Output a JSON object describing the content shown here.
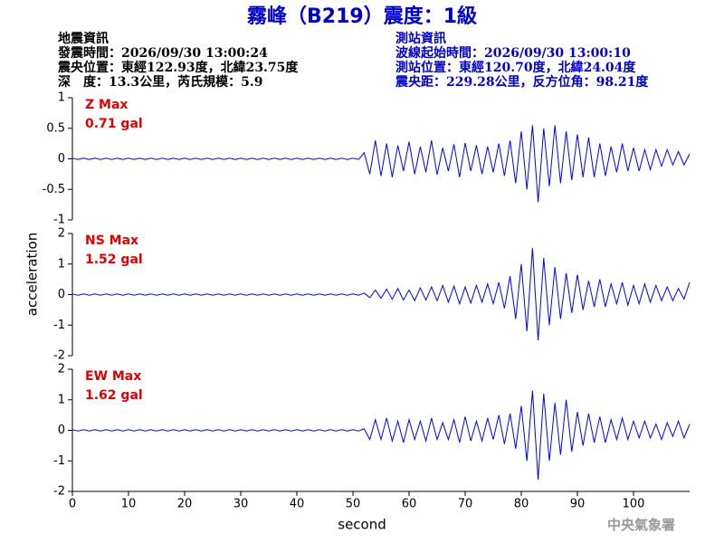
{
  "title": "霧峰（B219）震度：1級",
  "event": {
    "heading": "地震資訊",
    "time": "發震時間：2026/09/30 13:00:24",
    "location": "震央位置：東經122.93度，北緯23.75度",
    "depth": "深　度：13.3公里，芮氏規模：5.9"
  },
  "station": {
    "heading": "測站資訊",
    "time": "波線起始時間：2026/09/30 13:00:10",
    "location": "測站位置：東經120.70度，北緯24.04度",
    "distance": "震央距：229.28公里，反方位角：98.21度"
  },
  "ylabel": "acceleration",
  "xlabel": "second",
  "footer": "中央氣象署",
  "chart_data": [
    {
      "type": "line",
      "annotation": [
        "Z Max",
        "0.71 gal"
      ],
      "color": "#0000ff",
      "xlim": [
        0,
        110
      ],
      "ylim": [
        -1,
        1
      ],
      "yticks": [
        -1,
        -0.5,
        0,
        0.5,
        1
      ],
      "x": [
        0,
        1,
        2,
        3,
        4,
        5,
        6,
        7,
        8,
        9,
        10,
        11,
        12,
        13,
        14,
        15,
        16,
        17,
        18,
        19,
        20,
        21,
        22,
        23,
        24,
        25,
        26,
        27,
        28,
        29,
        30,
        31,
        32,
        33,
        34,
        35,
        36,
        37,
        38,
        39,
        40,
        41,
        42,
        43,
        44,
        45,
        46,
        47,
        48,
        49,
        50,
        51,
        52,
        53,
        54,
        55,
        56,
        57,
        58,
        59,
        60,
        61,
        62,
        63,
        64,
        65,
        66,
        67,
        68,
        69,
        70,
        71,
        72,
        73,
        74,
        75,
        76,
        77,
        78,
        79,
        80,
        81,
        82,
        83,
        84,
        85,
        86,
        87,
        88,
        89,
        90,
        91,
        92,
        93,
        94,
        95,
        96,
        97,
        98,
        99,
        100,
        101,
        102,
        103,
        104,
        105,
        106,
        107,
        108,
        109,
        110
      ],
      "values": [
        0.01,
        -0.01,
        0.01,
        -0.01,
        0.01,
        -0.01,
        0.01,
        -0.01,
        0.01,
        -0.01,
        0.01,
        -0.01,
        0.01,
        -0.01,
        0.01,
        -0.01,
        0.01,
        -0.01,
        0.01,
        -0.01,
        0.01,
        -0.01,
        0.01,
        -0.01,
        0.01,
        -0.01,
        0.01,
        -0.01,
        0.01,
        -0.01,
        0.01,
        -0.01,
        0.01,
        -0.01,
        0.01,
        -0.01,
        0.01,
        -0.01,
        0.01,
        -0.01,
        0.01,
        -0.01,
        0.01,
        -0.01,
        0.01,
        -0.01,
        0.01,
        -0.01,
        0.01,
        -0.01,
        0.01,
        -0.01,
        0.1,
        -0.25,
        0.3,
        -0.28,
        0.25,
        -0.3,
        0.22,
        -0.2,
        0.28,
        -0.25,
        0.2,
        -0.22,
        0.3,
        -0.26,
        0.18,
        -0.2,
        0.24,
        -0.3,
        0.26,
        -0.2,
        0.22,
        -0.25,
        0.2,
        -0.22,
        0.25,
        -0.28,
        0.3,
        -0.4,
        0.45,
        -0.5,
        0.55,
        -0.71,
        0.5,
        -0.45,
        0.55,
        -0.4,
        0.45,
        -0.35,
        0.4,
        -0.3,
        0.35,
        -0.3,
        0.25,
        -0.28,
        0.2,
        -0.22,
        0.25,
        -0.2,
        0.18,
        -0.2,
        0.15,
        -0.18,
        0.15,
        -0.12,
        0.15,
        -0.1,
        0.12,
        -0.1,
        0.08
      ]
    },
    {
      "type": "line",
      "annotation": [
        "NS Max",
        "1.52 gal"
      ],
      "color": "#0000ff",
      "xlim": [
        0,
        110
      ],
      "ylim": [
        -2,
        2
      ],
      "yticks": [
        -2,
        -1,
        0,
        1,
        2
      ],
      "x": [
        0,
        1,
        2,
        3,
        4,
        5,
        6,
        7,
        8,
        9,
        10,
        11,
        12,
        13,
        14,
        15,
        16,
        17,
        18,
        19,
        20,
        21,
        22,
        23,
        24,
        25,
        26,
        27,
        28,
        29,
        30,
        31,
        32,
        33,
        34,
        35,
        36,
        37,
        38,
        39,
        40,
        41,
        42,
        43,
        44,
        45,
        46,
        47,
        48,
        49,
        50,
        51,
        52,
        53,
        54,
        55,
        56,
        57,
        58,
        59,
        60,
        61,
        62,
        63,
        64,
        65,
        66,
        67,
        68,
        69,
        70,
        71,
        72,
        73,
        74,
        75,
        76,
        77,
        78,
        79,
        80,
        81,
        82,
        83,
        84,
        85,
        86,
        87,
        88,
        89,
        90,
        91,
        92,
        93,
        94,
        95,
        96,
        97,
        98,
        99,
        100,
        101,
        102,
        103,
        104,
        105,
        106,
        107,
        108,
        109,
        110
      ],
      "values": [
        0.02,
        -0.02,
        0.02,
        -0.02,
        0.02,
        -0.02,
        0.02,
        -0.02,
        0.02,
        -0.02,
        0.02,
        -0.02,
        0.02,
        -0.02,
        0.02,
        -0.02,
        0.02,
        -0.02,
        0.02,
        -0.02,
        0.02,
        -0.02,
        0.02,
        -0.02,
        0.02,
        -0.02,
        0.02,
        -0.02,
        0.02,
        -0.02,
        0.02,
        -0.02,
        0.02,
        -0.02,
        0.02,
        -0.02,
        0.02,
        -0.02,
        0.02,
        -0.02,
        0.02,
        -0.02,
        0.02,
        -0.02,
        0.02,
        -0.02,
        0.02,
        -0.02,
        0.02,
        -0.02,
        0.02,
        -0.02,
        0.05,
        -0.1,
        0.15,
        -0.12,
        0.18,
        -0.15,
        0.2,
        -0.18,
        0.15,
        -0.2,
        0.22,
        -0.18,
        0.25,
        -0.2,
        0.3,
        -0.25,
        0.28,
        -0.3,
        0.25,
        -0.28,
        0.3,
        -0.25,
        0.35,
        -0.3,
        0.4,
        -0.45,
        0.6,
        -0.8,
        1.0,
        -1.2,
        1.52,
        -1.5,
        1.2,
        -1.0,
        0.9,
        -0.8,
        0.7,
        -0.6,
        0.65,
        -0.5,
        0.45,
        -0.4,
        0.5,
        -0.4,
        0.35,
        -0.3,
        0.4,
        -0.35,
        0.3,
        -0.3,
        0.35,
        -0.25,
        0.3,
        -0.2,
        0.25,
        -0.2,
        0.2,
        -0.15,
        0.4
      ]
    },
    {
      "type": "line",
      "annotation": [
        "EW Max",
        "1.62 gal"
      ],
      "color": "#0000ff",
      "xlim": [
        0,
        110
      ],
      "ylim": [
        -2,
        2
      ],
      "yticks": [
        -2,
        -1,
        0,
        1,
        2
      ],
      "xticks": [
        0,
        10,
        20,
        30,
        40,
        50,
        60,
        70,
        80,
        90,
        100
      ],
      "x": [
        0,
        1,
        2,
        3,
        4,
        5,
        6,
        7,
        8,
        9,
        10,
        11,
        12,
        13,
        14,
        15,
        16,
        17,
        18,
        19,
        20,
        21,
        22,
        23,
        24,
        25,
        26,
        27,
        28,
        29,
        30,
        31,
        32,
        33,
        34,
        35,
        36,
        37,
        38,
        39,
        40,
        41,
        42,
        43,
        44,
        45,
        46,
        47,
        48,
        49,
        50,
        51,
        52,
        53,
        54,
        55,
        56,
        57,
        58,
        59,
        60,
        61,
        62,
        63,
        64,
        65,
        66,
        67,
        68,
        69,
        70,
        71,
        72,
        73,
        74,
        75,
        76,
        77,
        78,
        79,
        80,
        81,
        82,
        83,
        84,
        85,
        86,
        87,
        88,
        89,
        90,
        91,
        92,
        93,
        94,
        95,
        96,
        97,
        98,
        99,
        100,
        101,
        102,
        103,
        104,
        105,
        106,
        107,
        108,
        109,
        110
      ],
      "values": [
        0.02,
        -0.02,
        0.02,
        -0.02,
        0.02,
        -0.02,
        0.02,
        -0.02,
        0.02,
        -0.02,
        0.02,
        -0.02,
        0.02,
        -0.02,
        0.02,
        -0.02,
        0.02,
        -0.02,
        0.02,
        -0.02,
        0.02,
        -0.02,
        0.02,
        -0.02,
        0.02,
        -0.02,
        0.02,
        -0.02,
        0.02,
        -0.02,
        0.02,
        -0.02,
        0.02,
        -0.02,
        0.02,
        -0.02,
        0.02,
        -0.02,
        0.02,
        -0.02,
        0.02,
        -0.02,
        0.02,
        -0.02,
        0.02,
        -0.02,
        0.02,
        -0.02,
        0.02,
        -0.02,
        0.02,
        -0.02,
        0.05,
        -0.3,
        0.35,
        -0.3,
        0.4,
        -0.35,
        0.3,
        -0.4,
        0.35,
        -0.3,
        0.3,
        -0.35,
        0.4,
        -0.3,
        0.25,
        -0.3,
        0.35,
        -0.4,
        0.45,
        -0.35,
        0.3,
        -0.35,
        0.4,
        -0.3,
        0.5,
        -0.45,
        0.55,
        -0.6,
        0.8,
        -1.0,
        1.3,
        -1.62,
        1.2,
        -1.0,
        0.9,
        -0.8,
        1.0,
        -0.7,
        0.6,
        -0.5,
        0.55,
        -0.4,
        0.45,
        -0.4,
        0.35,
        -0.3,
        0.4,
        -0.3,
        0.3,
        -0.25,
        0.3,
        -0.25,
        0.2,
        -0.3,
        0.25,
        -0.2,
        0.3,
        -0.25,
        0.2
      ]
    }
  ]
}
